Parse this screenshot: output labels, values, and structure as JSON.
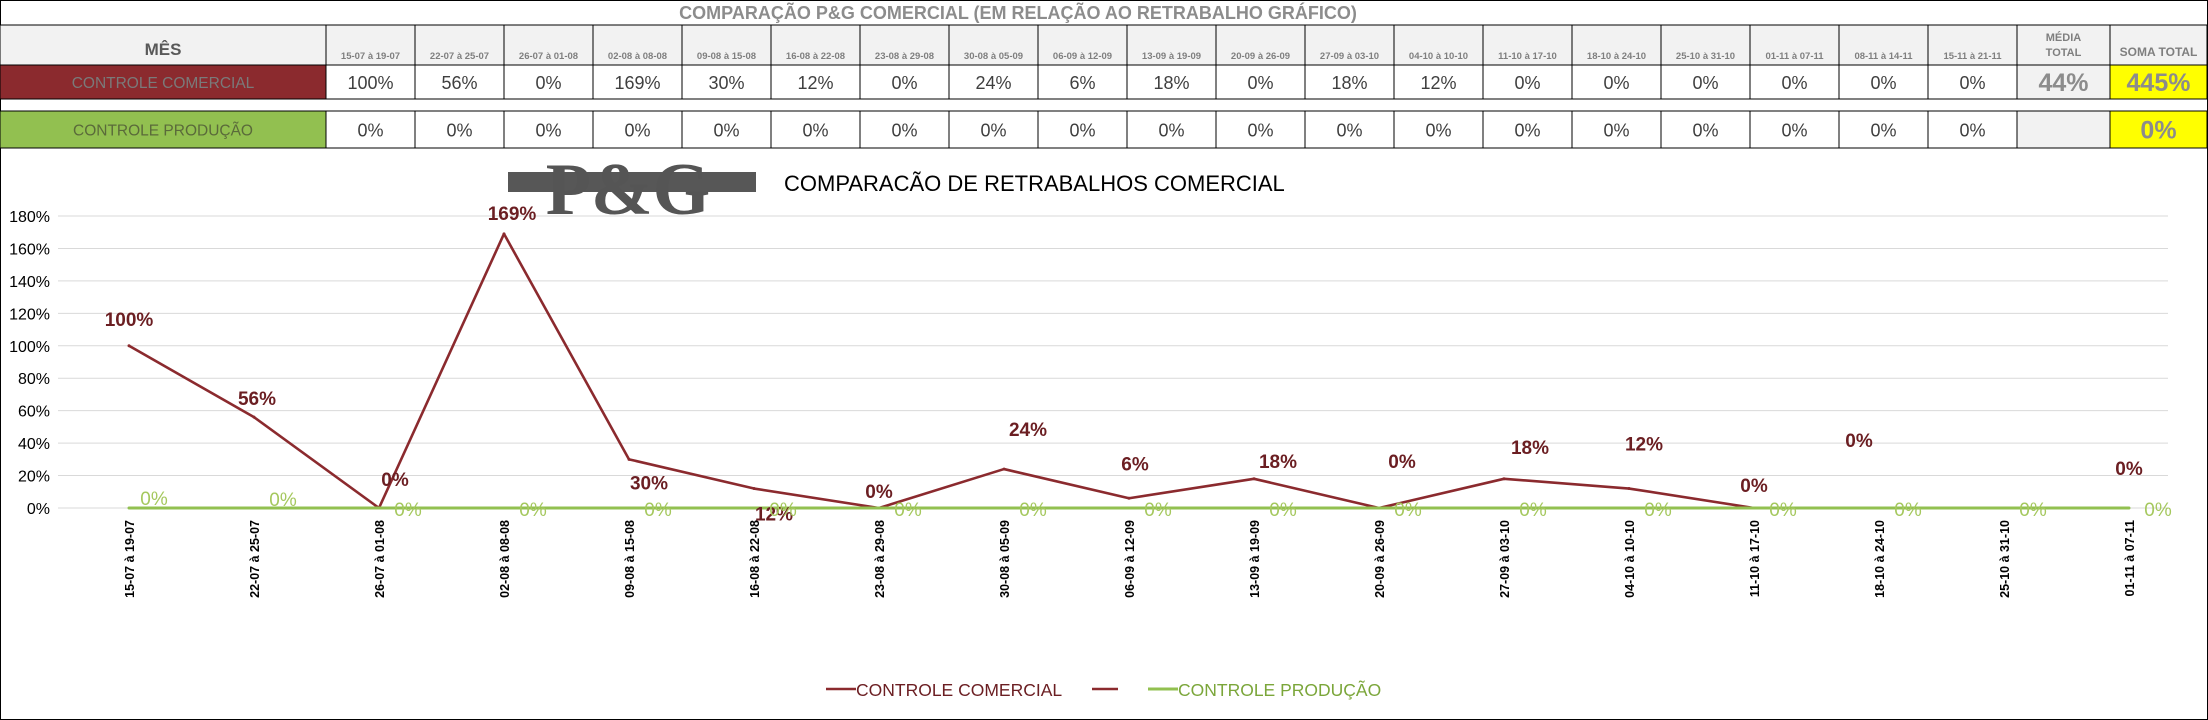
{
  "header": {
    "title": "COMPARAÇÃO P&G  COMERCIAL (EM RELAÇÃO AO RETRABALHO GRÁFICO)",
    "mes_label": "MÊS",
    "media_label_1": "MÉDIA",
    "media_label_2": "TOTAL",
    "soma_label": "SOMA TOTAL"
  },
  "periods_table": [
    "15-07 à 19-07",
    "22-07 à 25-07",
    "26-07 à 01-08",
    "02-08 à 08-08",
    "09-08 à 15-08",
    "16-08 à 22-08",
    "23-08 à 29-08",
    "30-08 à 05-09",
    "06-09 à 12-09",
    "13-09 à 19-09",
    "20-09 à 26-09",
    "27-09 à 03-10",
    "04-10 à 10-10",
    "11-10 à 17-10",
    "18-10 à 24-10",
    "25-10 à 31-10",
    "01-11 à 07-11",
    "08-11 à 14-11",
    "15-11 à 21-11"
  ],
  "rows": [
    {
      "label": "CONTROLE COMERCIAL",
      "values": [
        "100%",
        "56%",
        "0%",
        "169%",
        "30%",
        "12%",
        "0%",
        "24%",
        "6%",
        "18%",
        "0%",
        "18%",
        "12%",
        "0%",
        "0%",
        "0%",
        "0%",
        "0%",
        "0%"
      ],
      "media": "44%",
      "soma": "445%"
    },
    {
      "label": "CONTROLE PRODUÇÃO",
      "values": [
        "0%",
        "0%",
        "0%",
        "0%",
        "0%",
        "0%",
        "0%",
        "0%",
        "0%",
        "0%",
        "0%",
        "0%",
        "0%",
        "0%",
        "0%",
        "0%",
        "0%",
        "0%",
        "0%"
      ],
      "media": "",
      "soma": "0%"
    }
  ],
  "logo_text": "P&G",
  "colors": {
    "comercial": "#8B2A2E",
    "comercial_label_text": "#7a7a7a",
    "producao": "#92C050",
    "producao_label_text": "#5a6a3a",
    "highlight_yellow": "#FFFF00",
    "grid": "#d9d9d9",
    "header_bg": "#F2F2F2"
  },
  "chart_data": {
    "type": "line",
    "title": "COMPARACÃO DE RETRABALHOS COMERCIAL",
    "categories": [
      "15-07 à 19-07",
      "22-07 à 25-07",
      "26-07 à 01-08",
      "02-08 à 08-08",
      "09-08 à 15-08",
      "16-08 à 22-08",
      "23-08 à 29-08",
      "30-08 à 05-09",
      "06-09 à 12-09",
      "13-09 à 19-09",
      "20-09 à 26-09",
      "27-09 à 03-10",
      "04-10 à 10-10",
      "11-10 à 17-10",
      "18-10 à 24-10",
      "25-10 à 31-10",
      "01-11 à 07-11"
    ],
    "series": [
      {
        "name": "CONTROLE COMERCIAL",
        "values": [
          100,
          56,
          0,
          169,
          30,
          12,
          0,
          24,
          6,
          18,
          0,
          18,
          12,
          0,
          null,
          null,
          null
        ],
        "labels": [
          "100%",
          "56%",
          "0%",
          "169%",
          "30%",
          "12%",
          "0%",
          "24%",
          "6%",
          "18%",
          "0%",
          "18%",
          "12%",
          "0%",
          "0%",
          "",
          "0%"
        ]
      },
      {
        "name": "CONTROLE PRODUÇÃO",
        "values": [
          0,
          0,
          0,
          0,
          0,
          0,
          0,
          0,
          0,
          0,
          0,
          0,
          0,
          0,
          0,
          0,
          0
        ],
        "labels": [
          "0%",
          "0%",
          "0%",
          "0%",
          "0%",
          "0%",
          "0%",
          "0%",
          "0%",
          "0%",
          "0%",
          "0%",
          "0%",
          "0%",
          "0%",
          "0%",
          "0%"
        ]
      }
    ],
    "yticks": [
      "0%",
      "20%",
      "40%",
      "60%",
      "80%",
      "100%",
      "120%",
      "140%",
      "160%",
      "180%"
    ],
    "ylim": [
      0,
      180
    ],
    "grid": true,
    "legend": {
      "position": "bottom",
      "items": [
        "CONTROLE COMERCIAL",
        "",
        "CONTROLE PRODUÇÃO"
      ]
    }
  }
}
